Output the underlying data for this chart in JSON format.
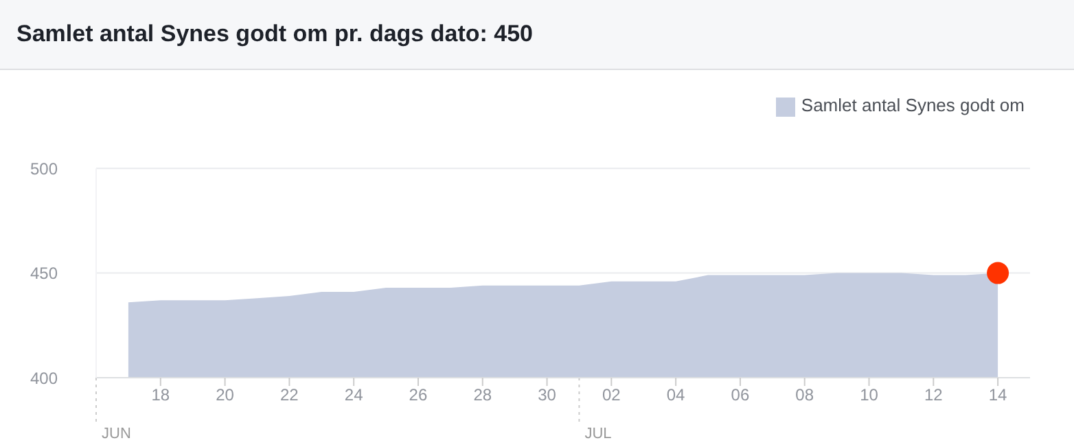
{
  "chart_data": {
    "type": "area",
    "title": "Samlet antal Synes godt om pr. dags dato: 450",
    "x": [
      "--06-17",
      "--06-18",
      "--06-19",
      "--06-20",
      "--06-21",
      "--06-22",
      "--06-23",
      "--06-24",
      "--06-25",
      "--06-26",
      "--06-27",
      "--06-28",
      "--06-29",
      "--06-30",
      "--07-01",
      "--07-02",
      "--07-03",
      "--07-04",
      "--07-05",
      "--07-06",
      "--07-07",
      "--07-08",
      "--07-09",
      "--07-10",
      "--07-11",
      "--07-12",
      "--07-13",
      "--07-14"
    ],
    "series": [
      {
        "name": "Samlet antal Synes godt om",
        "color": "#c5cde0",
        "values": [
          436,
          437,
          437,
          437,
          438,
          439,
          441,
          441,
          443,
          443,
          443,
          444,
          444,
          444,
          444,
          446,
          446,
          446,
          449,
          449,
          449,
          449,
          450,
          450,
          450,
          449,
          449,
          450
        ]
      },
      {
        "type": "scatter",
        "color": "#ff3300",
        "x": [
          "--07-14"
        ],
        "values": [
          450
        ],
        "marker": "circle"
      }
    ],
    "xlim": [
      "--06-16",
      "--07-15"
    ],
    "xticks": [
      {
        "value": "--06-18",
        "label": "18"
      },
      {
        "value": "--06-20",
        "label": "20"
      },
      {
        "value": "--06-22",
        "label": "22"
      },
      {
        "value": "--06-24",
        "label": "24"
      },
      {
        "value": "--06-26",
        "label": "26"
      },
      {
        "value": "--06-28",
        "label": "28"
      },
      {
        "value": "--06-30",
        "label": "30"
      },
      {
        "value": "--07-02",
        "label": "02"
      },
      {
        "value": "--07-04",
        "label": "04"
      },
      {
        "value": "--07-06",
        "label": "06"
      },
      {
        "value": "--07-08",
        "label": "08"
      },
      {
        "value": "--07-10",
        "label": "10"
      },
      {
        "value": "--07-12",
        "label": "12"
      },
      {
        "value": "--07-14",
        "label": "14"
      }
    ],
    "ref_lines": [
      {
        "axis": "x",
        "value": "--06-16",
        "label": "JUN",
        "line_style": "dotted",
        "color": "#cccccc"
      },
      {
        "axis": "x",
        "value": "--07-01",
        "label": "JUL",
        "line_style": "dotted",
        "color": "#cccccc"
      }
    ],
    "ylim": [
      400,
      500
    ],
    "yticks": [
      400,
      450,
      500
    ],
    "grid": "y",
    "legend": "top right"
  }
}
